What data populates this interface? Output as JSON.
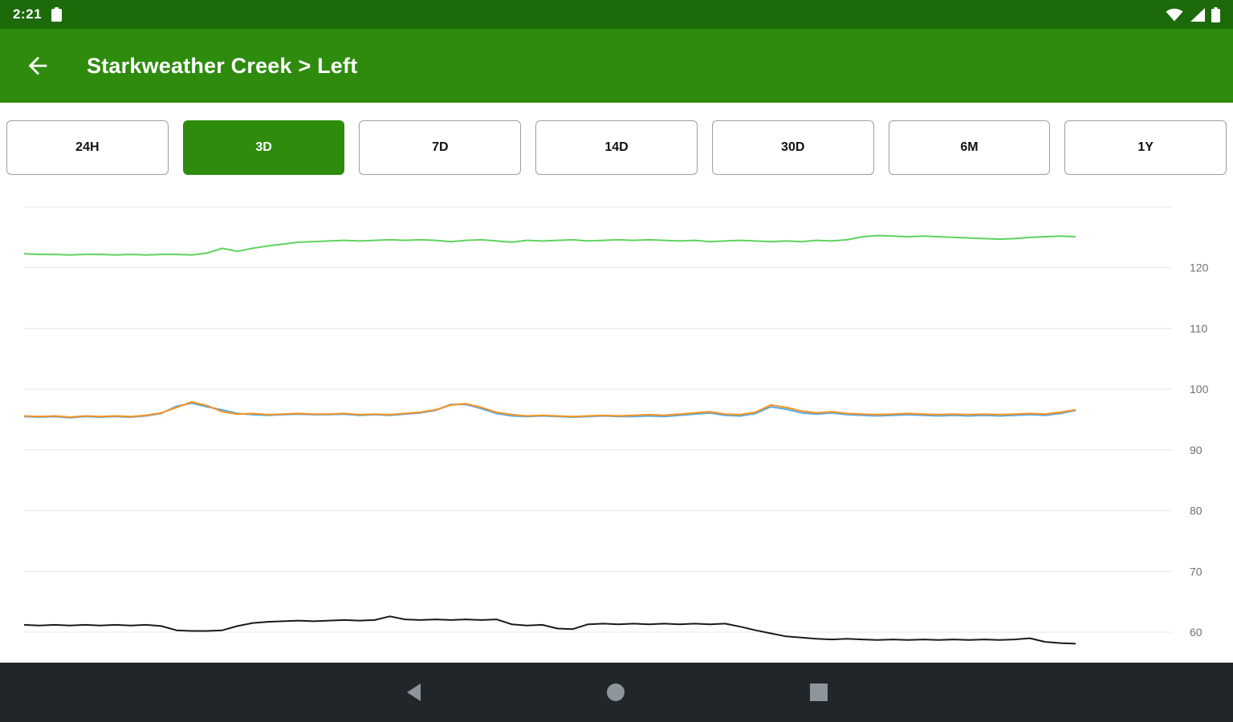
{
  "status_bar": {
    "time": "2:21",
    "icons_left": [
      "notification-icon"
    ],
    "icons_right": [
      "wifi-icon",
      "signal-icon",
      "battery-icon"
    ]
  },
  "app_bar": {
    "title": "Starkweather Creek > Left",
    "back_icon": "back-arrow-icon"
  },
  "range_tabs": {
    "items": [
      {
        "label": "24H",
        "selected": false
      },
      {
        "label": "3D",
        "selected": true
      },
      {
        "label": "7D",
        "selected": false
      },
      {
        "label": "14D",
        "selected": false
      },
      {
        "label": "30D",
        "selected": false
      },
      {
        "label": "6M",
        "selected": false
      },
      {
        "label": "1Y",
        "selected": false
      }
    ]
  },
  "colors": {
    "status_bar": "#1c6a0a",
    "app_bar": "#2e8b0e",
    "selected_tab": "#2e8b0e",
    "nav_bar": "#21262b",
    "nav_icon": "#8f969b"
  },
  "chart_data": {
    "type": "line",
    "title": "",
    "xlabel": "",
    "ylabel": "",
    "x_tick_labels_visible": false,
    "ylim": [
      55,
      130
    ],
    "yticks": [
      120,
      110,
      100,
      90,
      80,
      70,
      60
    ],
    "grid_values": [
      130,
      120,
      110,
      100,
      90,
      80,
      70,
      60
    ],
    "grid": true,
    "legend_position": "none",
    "series": [
      {
        "name": "green-series",
        "color": "#5fd35f",
        "values": [
          122.3,
          122.2,
          122.2,
          122.1,
          122.2,
          122.2,
          122.1,
          122.2,
          122.1,
          122.2,
          122.2,
          122.1,
          122.4,
          123.2,
          122.7,
          123.2,
          123.6,
          123.9,
          124.2,
          124.3,
          124.4,
          124.5,
          124.4,
          124.5,
          124.6,
          124.5,
          124.6,
          124.5,
          124.3,
          124.5,
          124.6,
          124.4,
          124.2,
          124.5,
          124.4,
          124.5,
          124.6,
          124.4,
          124.5,
          124.6,
          124.5,
          124.6,
          124.5,
          124.4,
          124.5,
          124.3,
          124.4,
          124.5,
          124.4,
          124.3,
          124.4,
          124.3,
          124.5,
          124.4,
          124.6,
          125.1,
          125.3,
          125.2,
          125.1,
          125.2,
          125.1,
          125.0,
          124.9,
          124.8,
          124.7,
          124.8,
          125.0,
          125.1,
          125.2,
          125.1
        ]
      },
      {
        "name": "blue-series",
        "color": "#5aabe8",
        "values": [
          95.5,
          95.4,
          95.5,
          95.3,
          95.5,
          95.4,
          95.5,
          95.4,
          95.6,
          96.0,
          97.2,
          97.7,
          97.1,
          96.6,
          96.0,
          95.8,
          95.7,
          95.8,
          95.9,
          95.8,
          95.8,
          95.9,
          95.7,
          95.8,
          95.7,
          95.9,
          96.1,
          96.5,
          97.5,
          97.5,
          96.8,
          96.0,
          95.6,
          95.5,
          95.6,
          95.5,
          95.4,
          95.5,
          95.6,
          95.5,
          95.5,
          95.6,
          95.5,
          95.7,
          95.9,
          96.1,
          95.7,
          95.6,
          96.0,
          97.1,
          96.7,
          96.1,
          95.9,
          96.1,
          95.8,
          95.7,
          95.6,
          95.7,
          95.8,
          95.7,
          95.6,
          95.7,
          95.6,
          95.7,
          95.6,
          95.7,
          95.8,
          95.7,
          96.0,
          96.5
        ]
      },
      {
        "name": "orange-series",
        "color": "#f59220",
        "values": [
          95.6,
          95.5,
          95.6,
          95.4,
          95.6,
          95.5,
          95.6,
          95.5,
          95.7,
          96.1,
          97.0,
          97.9,
          97.3,
          96.3,
          95.9,
          96.0,
          95.8,
          95.9,
          96.0,
          95.9,
          95.9,
          96.0,
          95.8,
          95.9,
          95.8,
          96.0,
          96.2,
          96.6,
          97.4,
          97.6,
          97.0,
          96.2,
          95.8,
          95.6,
          95.7,
          95.6,
          95.5,
          95.6,
          95.7,
          95.6,
          95.7,
          95.8,
          95.7,
          95.9,
          96.1,
          96.3,
          95.9,
          95.8,
          96.2,
          97.4,
          97.0,
          96.4,
          96.1,
          96.3,
          96.0,
          95.9,
          95.8,
          95.9,
          96.0,
          95.9,
          95.8,
          95.9,
          95.8,
          95.9,
          95.8,
          95.9,
          96.0,
          95.9,
          96.2,
          96.6
        ]
      },
      {
        "name": "black-series",
        "color": "#1a1a1a",
        "values": [
          61.2,
          61.1,
          61.2,
          61.1,
          61.2,
          61.1,
          61.2,
          61.1,
          61.2,
          61.0,
          60.3,
          60.2,
          60.2,
          60.3,
          61.0,
          61.5,
          61.7,
          61.8,
          61.9,
          61.8,
          61.9,
          62.0,
          61.9,
          62.0,
          62.6,
          62.1,
          62.0,
          62.1,
          62.0,
          62.1,
          62.0,
          62.1,
          61.3,
          61.1,
          61.2,
          60.6,
          60.5,
          61.3,
          61.4,
          61.3,
          61.4,
          61.3,
          61.4,
          61.3,
          61.4,
          61.3,
          61.4,
          60.9,
          60.3,
          59.8,
          59.3,
          59.1,
          58.9,
          58.8,
          58.9,
          58.8,
          58.7,
          58.8,
          58.7,
          58.8,
          58.7,
          58.8,
          58.7,
          58.8,
          58.7,
          58.8,
          59.0,
          58.4,
          58.2,
          58.1
        ]
      }
    ]
  },
  "nav_bar": {
    "icons": [
      "back",
      "home",
      "recents"
    ]
  }
}
